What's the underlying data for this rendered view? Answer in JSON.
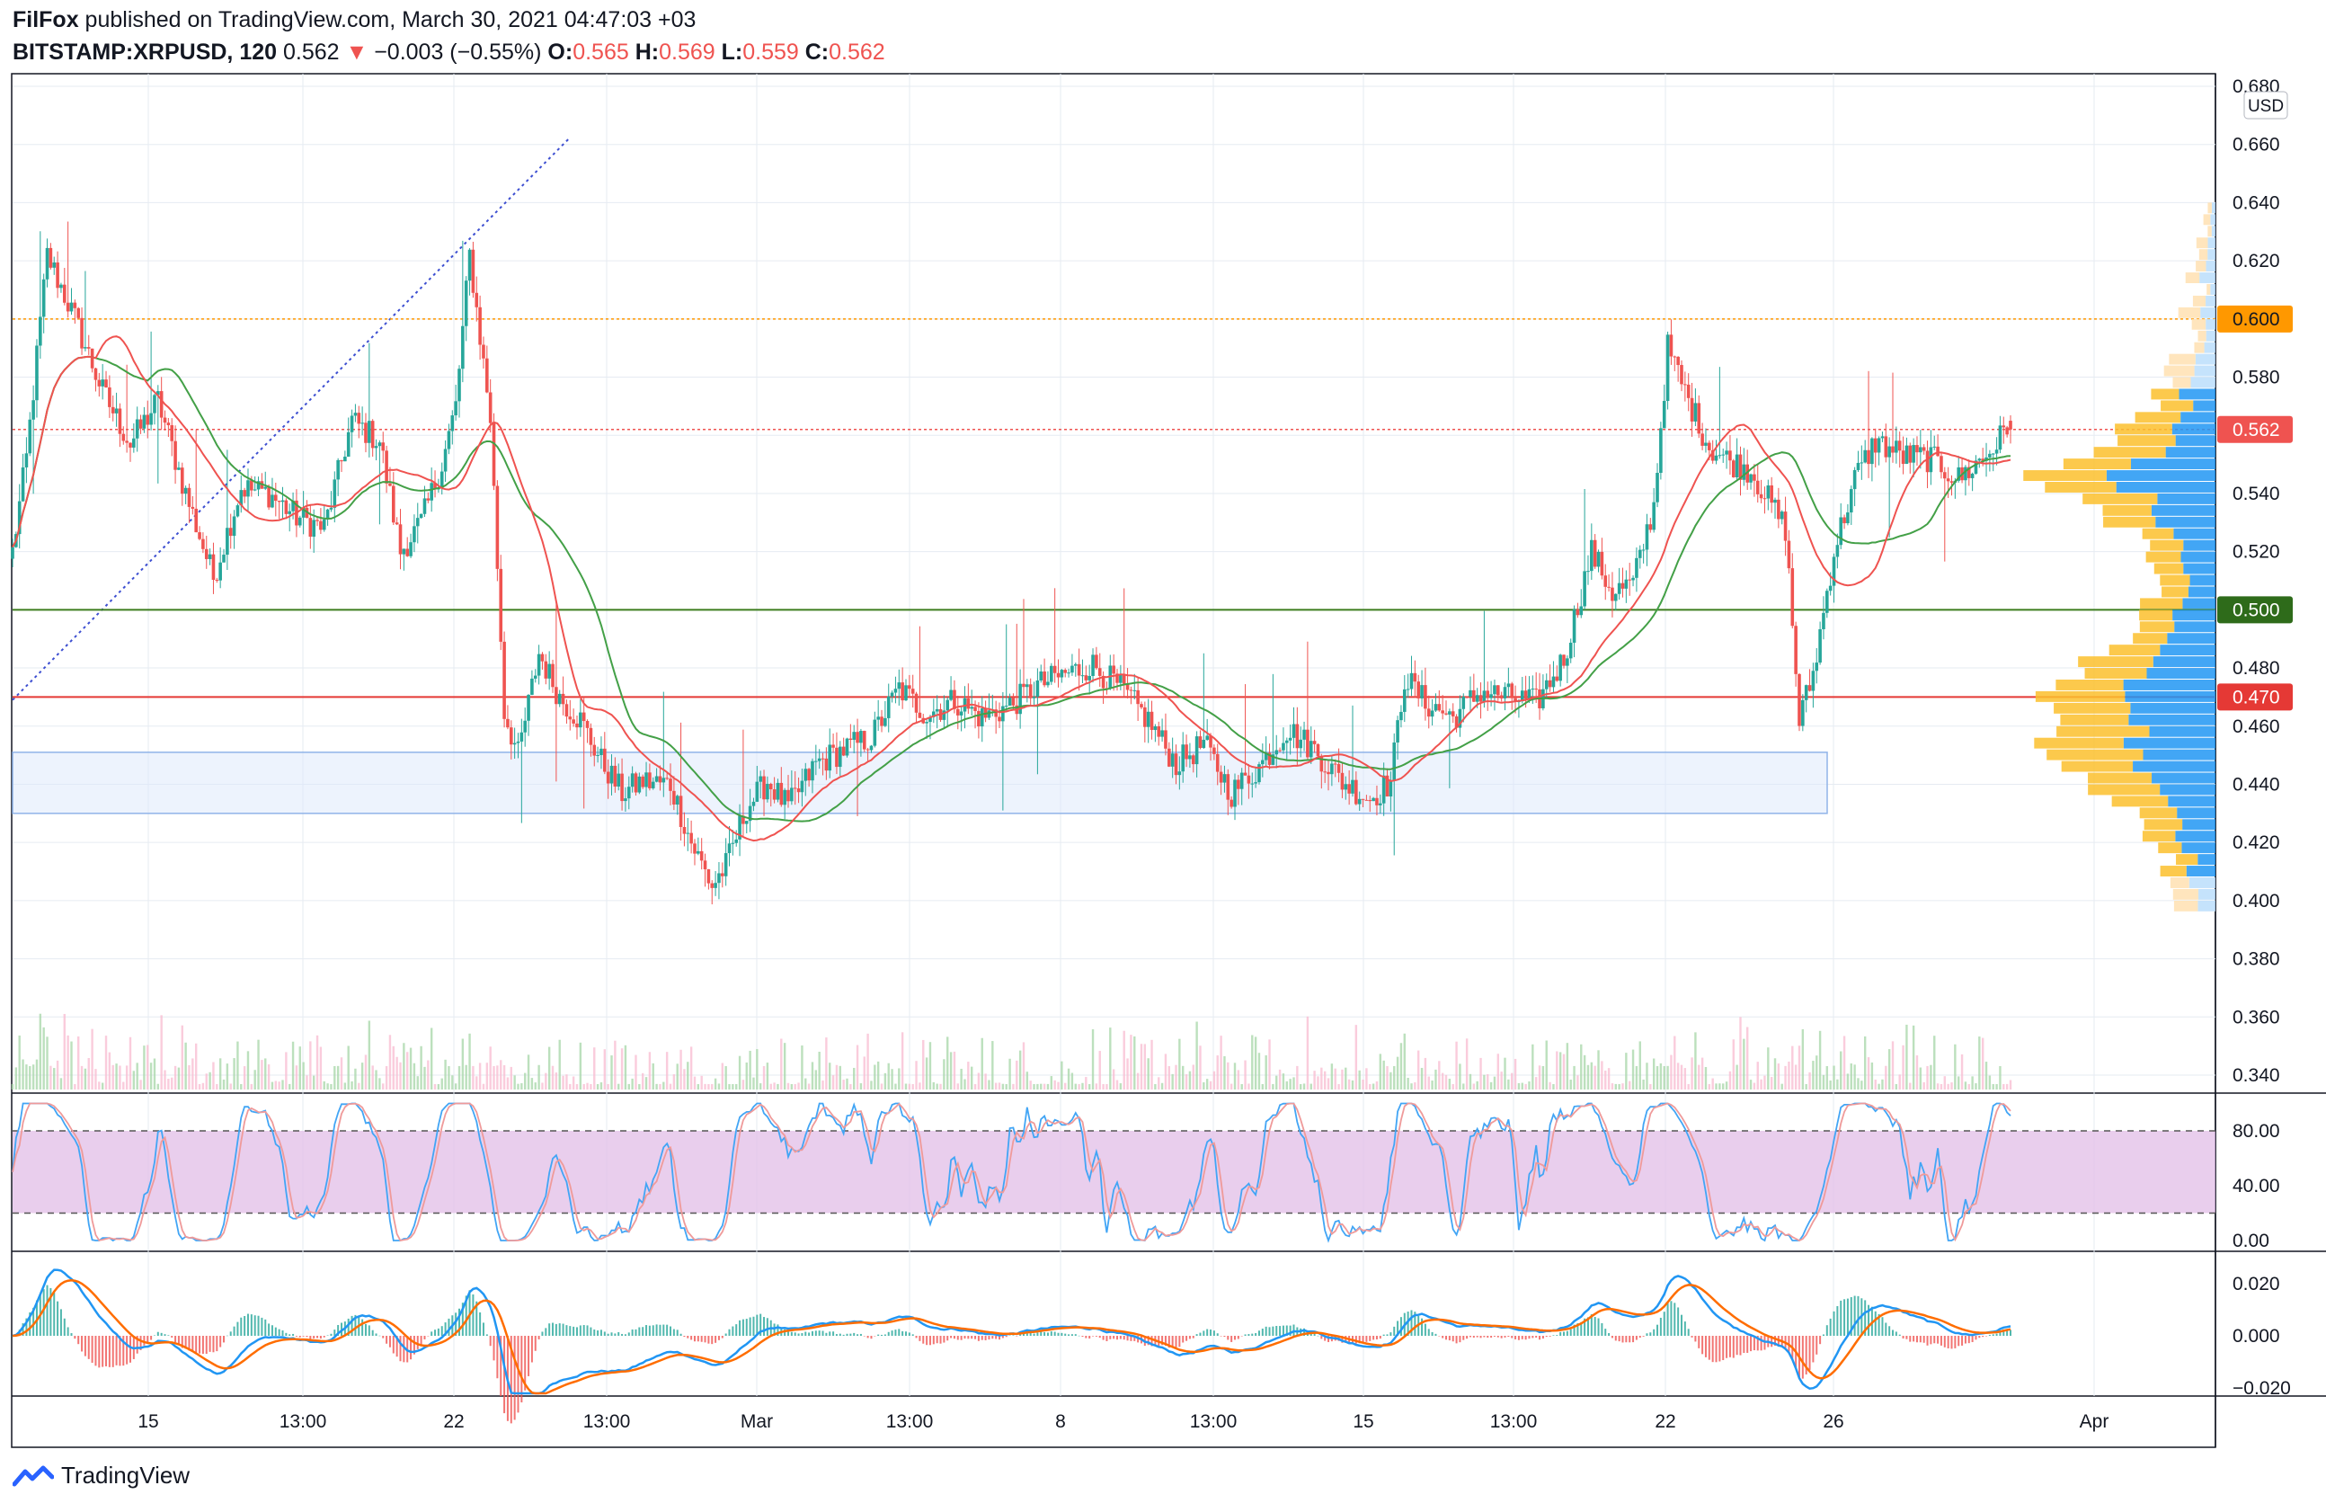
{
  "header": {
    "author": "FilFox",
    "published_text": " published on TradingView.com, March 30, 2021 04:47:03 +03",
    "symbol": "BITSTAMP:XRPUSD, 120",
    "last": "0.562",
    "change": "−0.003 (−0.55%)",
    "o_label": "O:",
    "o_value": "0.565",
    "h_label": "H:",
    "h_value": "0.569",
    "l_label": "L:",
    "l_value": "0.559",
    "c_label": "C:",
    "c_value": "0.562"
  },
  "axis": {
    "currency": "USD",
    "price_ticks": [
      "0.680",
      "0.660",
      "0.640",
      "0.620",
      "0.580",
      "0.540",
      "0.520",
      "0.480",
      "0.460",
      "0.440",
      "0.420",
      "0.400",
      "0.380",
      "0.360",
      "0.340"
    ],
    "stoch_ticks": [
      "80.00",
      "40.00",
      "0.00"
    ],
    "macd_ticks": [
      "0.020",
      "0.000",
      "−0.020"
    ],
    "time_ticks": [
      "15",
      "13:00",
      "22",
      "13:00",
      "Mar",
      "13:00",
      "8",
      "13:00",
      "15",
      "13:00",
      "22",
      "26",
      "Apr"
    ]
  },
  "badges": {
    "level_600": "0.600",
    "last_price": "0.562",
    "level_500": "0.500",
    "level_470": "0.470"
  },
  "colors": {
    "up": "#26a69a",
    "down": "#ef5350",
    "ma_green": "#43a047",
    "ma_red": "#ef5350",
    "level_orange": "#ff9800",
    "level_green": "#3d7d1f",
    "level_red": "#e53935",
    "zone": "#d6e6fb",
    "stoch_band": "#e1bee7",
    "macd_blue": "#2196f3",
    "macd_orange": "#ff6d00"
  },
  "chart_data": {
    "type": "candlestick",
    "symbol": "BITSTAMP:XRPUSD",
    "interval": "120",
    "ohlc_last": {
      "open": 0.565,
      "high": 0.569,
      "low": 0.559,
      "close": 0.562
    },
    "ylim": [
      0.335,
      0.682
    ],
    "horizontal_levels": [
      0.6,
      0.562,
      0.5,
      0.47
    ],
    "support_zone": [
      0.43,
      0.451
    ],
    "path_knots": [
      [
        0,
        0.52
      ],
      [
        4,
        0.552
      ],
      [
        10,
        0.622
      ],
      [
        18,
        0.6
      ],
      [
        26,
        0.575
      ],
      [
        34,
        0.557
      ],
      [
        42,
        0.572
      ],
      [
        50,
        0.54
      ],
      [
        58,
        0.511
      ],
      [
        66,
        0.542
      ],
      [
        74,
        0.54
      ],
      [
        82,
        0.532
      ],
      [
        90,
        0.528
      ],
      [
        98,
        0.565
      ],
      [
        106,
        0.558
      ],
      [
        112,
        0.52
      ],
      [
        118,
        0.53
      ],
      [
        124,
        0.55
      ],
      [
        128,
        0.57
      ],
      [
        132,
        0.622
      ],
      [
        138,
        0.566
      ],
      [
        142,
        0.465
      ],
      [
        146,
        0.45
      ],
      [
        152,
        0.485
      ],
      [
        158,
        0.47
      ],
      [
        164,
        0.462
      ],
      [
        170,
        0.448
      ],
      [
        176,
        0.437
      ],
      [
        182,
        0.441
      ],
      [
        190,
        0.44
      ],
      [
        196,
        0.42
      ],
      [
        202,
        0.405
      ],
      [
        206,
        0.412
      ],
      [
        212,
        0.432
      ],
      [
        218,
        0.441
      ],
      [
        224,
        0.432
      ],
      [
        232,
        0.447
      ],
      [
        240,
        0.452
      ],
      [
        248,
        0.456
      ],
      [
        256,
        0.473
      ],
      [
        264,
        0.464
      ],
      [
        272,
        0.469
      ],
      [
        280,
        0.463
      ],
      [
        288,
        0.467
      ],
      [
        296,
        0.474
      ],
      [
        304,
        0.478
      ],
      [
        312,
        0.481
      ],
      [
        320,
        0.473
      ],
      [
        328,
        0.462
      ],
      [
        336,
        0.447
      ],
      [
        344,
        0.454
      ],
      [
        352,
        0.437
      ],
      [
        360,
        0.446
      ],
      [
        368,
        0.459
      ],
      [
        376,
        0.452
      ],
      [
        384,
        0.441
      ],
      [
        392,
        0.435
      ],
      [
        398,
        0.441
      ],
      [
        402,
        0.477
      ],
      [
        408,
        0.468
      ],
      [
        416,
        0.463
      ],
      [
        424,
        0.472
      ],
      [
        432,
        0.47
      ],
      [
        440,
        0.468
      ],
      [
        448,
        0.483
      ],
      [
        456,
        0.52
      ],
      [
        462,
        0.506
      ],
      [
        468,
        0.509
      ],
      [
        474,
        0.536
      ],
      [
        478,
        0.59
      ],
      [
        484,
        0.572
      ],
      [
        490,
        0.556
      ],
      [
        496,
        0.551
      ],
      [
        502,
        0.548
      ],
      [
        506,
        0.54
      ],
      [
        512,
        0.528
      ],
      [
        516,
        0.462
      ],
      [
        520,
        0.478
      ],
      [
        526,
        0.52
      ],
      [
        532,
        0.545
      ],
      [
        538,
        0.558
      ],
      [
        546,
        0.553
      ],
      [
        554,
        0.552
      ],
      [
        562,
        0.545
      ],
      [
        570,
        0.553
      ],
      [
        576,
        0.562
      ]
    ]
  }
}
